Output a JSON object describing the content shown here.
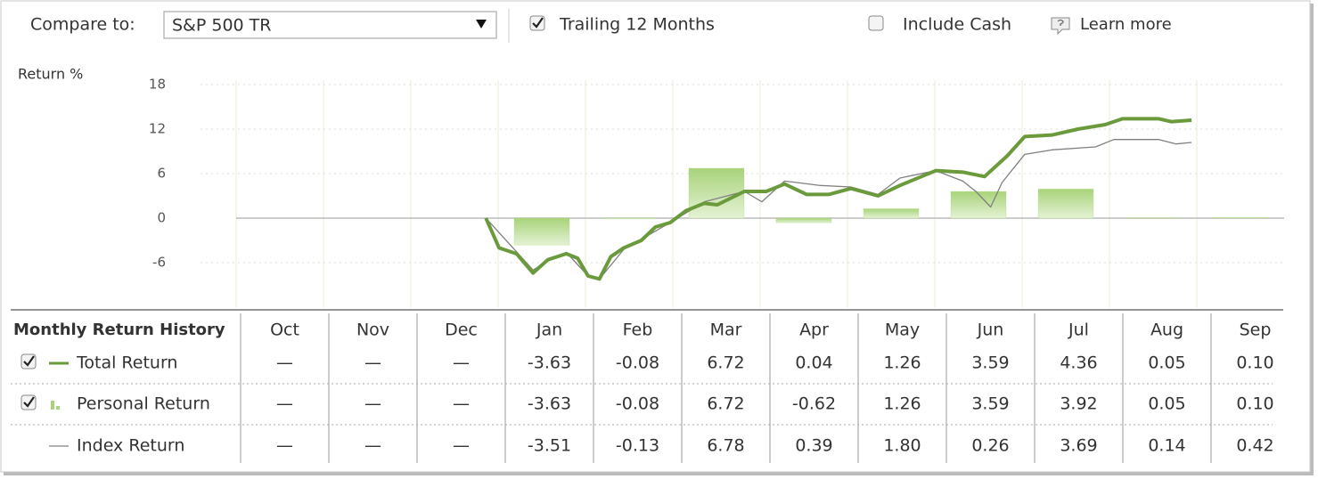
{
  "controls": {
    "compare_label": "Compare to:",
    "compare_value": "S&P 500 TR",
    "trailing": {
      "label": "Trailing 12 Months",
      "checked": true
    },
    "include_cash": {
      "label": "Include Cash",
      "checked": false
    },
    "learn_more": "Learn more"
  },
  "chart_data": {
    "type": "line",
    "y_label": "Return %",
    "xlim": [
      0,
      12
    ],
    "ylim": [
      -12,
      18.6
    ],
    "yticks": [
      -6,
      0,
      6,
      12,
      18
    ],
    "grid": true,
    "bar_color": "#a8d37a",
    "series": [
      {
        "color": "#6b9a3c",
        "x": [
          2.86,
          3.01,
          3.21,
          3.4,
          3.57,
          3.78,
          3.91,
          4.03,
          4.16,
          4.29,
          4.44,
          4.64,
          4.8,
          4.97,
          5.15,
          5.36,
          5.51,
          5.82,
          6.07,
          6.28,
          6.53,
          6.79,
          7.04,
          7.35,
          7.6,
          8.01,
          8.32,
          8.57,
          8.83,
          9.03,
          9.34,
          9.64,
          9.95,
          10.15,
          10.56,
          10.71,
          10.94
        ],
        "values": [
          0,
          -4,
          -4.8,
          -7.4,
          -5.6,
          -4.8,
          -5.4,
          -7.8,
          -8.2,
          -5.2,
          -4,
          -3,
          -1.2,
          -0.6,
          1,
          2,
          1.8,
          3.6,
          3.6,
          4.6,
          3.2,
          3.2,
          4,
          3,
          4.4,
          6.4,
          6.2,
          5.6,
          8.4,
          11,
          11.2,
          12,
          12.6,
          13.4,
          13.4,
          13,
          13.2
        ]
      },
      {
        "color": "#808080",
        "x": [
          2.86,
          3.4,
          3.57,
          3.78,
          4.03,
          4.16,
          4.44,
          4.97,
          5.36,
          5.82,
          6.02,
          6.28,
          6.69,
          7.04,
          7.35,
          7.6,
          8.01,
          8.32,
          8.47,
          8.64,
          8.77,
          9.03,
          9.34,
          9.84,
          10.05,
          10.56,
          10.76,
          10.94
        ],
        "values": [
          0,
          -7,
          -5.8,
          -4.6,
          -7.8,
          -8.2,
          -4.2,
          -0.6,
          2.2,
          3.6,
          2.2,
          5,
          4.4,
          4.2,
          3.2,
          5.4,
          6.4,
          5,
          3.6,
          1.5,
          4.8,
          8.6,
          9.2,
          9.6,
          10.6,
          10.6,
          10,
          10.2
        ]
      }
    ]
  },
  "table": {
    "title": "Monthly Return History",
    "columns": [
      "Oct",
      "Nov",
      "Dec",
      "Jan",
      "Feb",
      "Mar",
      "Apr",
      "May",
      "Jun",
      "Jul",
      "Aug",
      "Sep"
    ],
    "rows": [
      {
        "name": "Total Return",
        "checked": true,
        "cells": [
          "—",
          "—",
          "—",
          -3.63,
          -0.08,
          6.72,
          0.04,
          1.26,
          3.59,
          4.36,
          0.05,
          {
            "value": 0.1,
            "label": "0.10"
          }
        ]
      },
      {
        "name": "Personal Return",
        "checked": true,
        "cells": [
          "—",
          "—",
          "—",
          -3.63,
          -0.08,
          6.72,
          -0.62,
          1.26,
          3.59,
          3.92,
          0.05,
          {
            "value": 0.1,
            "label": "0.10"
          }
        ]
      },
      {
        "name": "Index Return",
        "cells": [
          "—",
          "—",
          "—",
          -3.51,
          -0.13,
          6.78,
          0.39,
          {
            "value": 1.8,
            "label": "1.80"
          },
          0.26,
          3.69,
          0.14,
          0.42
        ]
      }
    ]
  }
}
